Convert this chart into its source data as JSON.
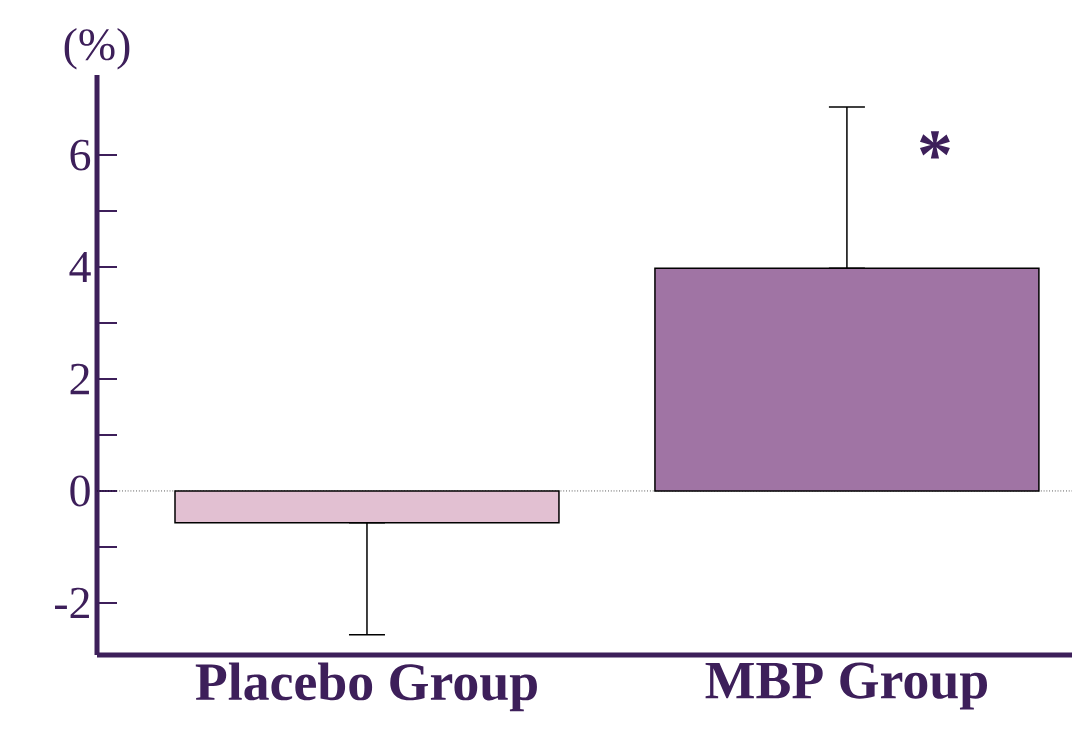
{
  "chart_data": {
    "type": "bar",
    "ylabel": "(%)",
    "categories": [
      "Placebo Group",
      "MBP Group"
    ],
    "values": [
      -0.57,
      3.98
    ],
    "colors": [
      "#e2c0d2",
      "#a074a4"
    ],
    "errors": [
      [
        -2.57,
        -0.57
      ],
      [
        3.98,
        6.86
      ]
    ],
    "ylim": [
      -2.93,
      7.43
    ],
    "yticks": [
      -2,
      0,
      2,
      4,
      6
    ],
    "ref_lines": [
      {
        "axis": "y",
        "value": 0,
        "line_style": "dotted"
      }
    ],
    "annotations": [
      {
        "text": "*",
        "x": "MBP Group",
        "y": 6.0
      }
    ]
  }
}
